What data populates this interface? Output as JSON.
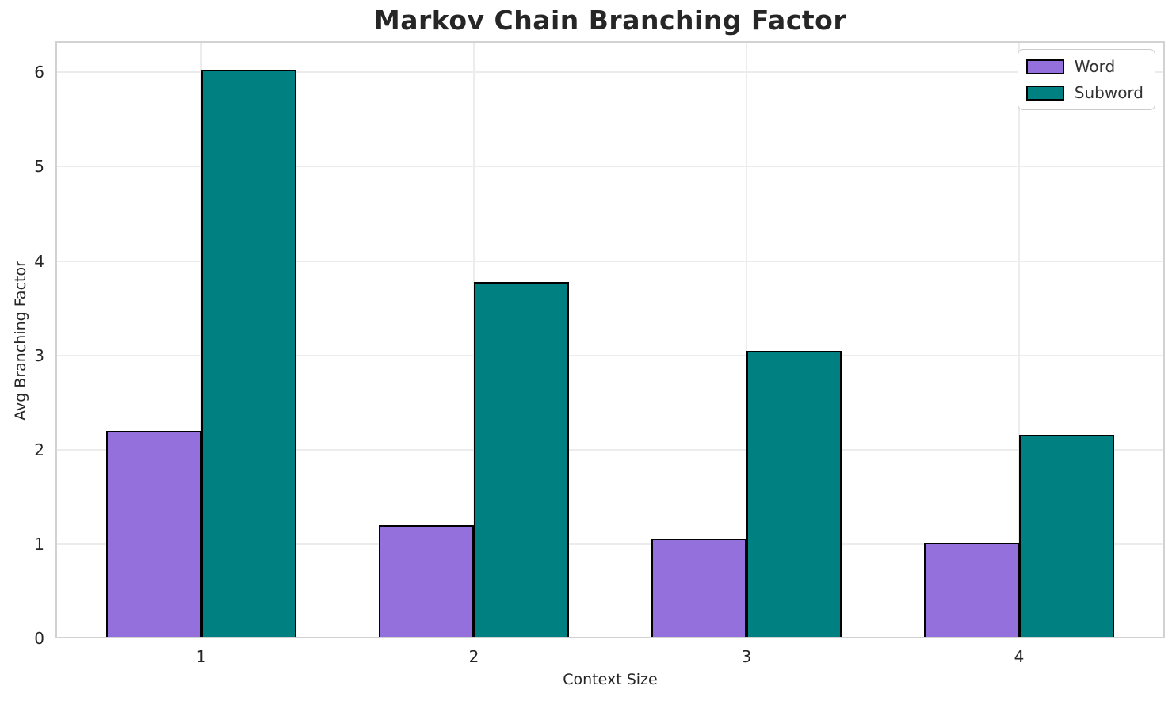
{
  "chart": {
    "title": "Markov Chain Branching Factor",
    "xlabel": "Context Size",
    "ylabel": "Avg Branching Factor"
  },
  "chart_data": {
    "type": "bar",
    "title": "Markov Chain Branching Factor",
    "xlabel": "Context Size",
    "ylabel": "Avg Branching Factor",
    "categories": [
      "1",
      "2",
      "3",
      "4"
    ],
    "series": [
      {
        "name": "Word",
        "color": "#9370DB",
        "values": [
          2.2,
          1.2,
          1.06,
          1.02
        ]
      },
      {
        "name": "Subword",
        "color": "#008080",
        "values": [
          6.03,
          3.78,
          3.05,
          2.16
        ]
      }
    ],
    "yticks": [
      0,
      1,
      2,
      3,
      4,
      5,
      6
    ],
    "ylim": [
      0,
      6.33
    ],
    "bar_width_data_units": 0.35,
    "grid": true,
    "legend_position": "upper right",
    "bar_edge_color": "#000000"
  },
  "colors": {
    "background": "#ffffff",
    "grid": "#ececec",
    "spine": "#d2d2d2",
    "text": "#262626",
    "word_series": "#9370DB",
    "subword_series": "#008080"
  }
}
